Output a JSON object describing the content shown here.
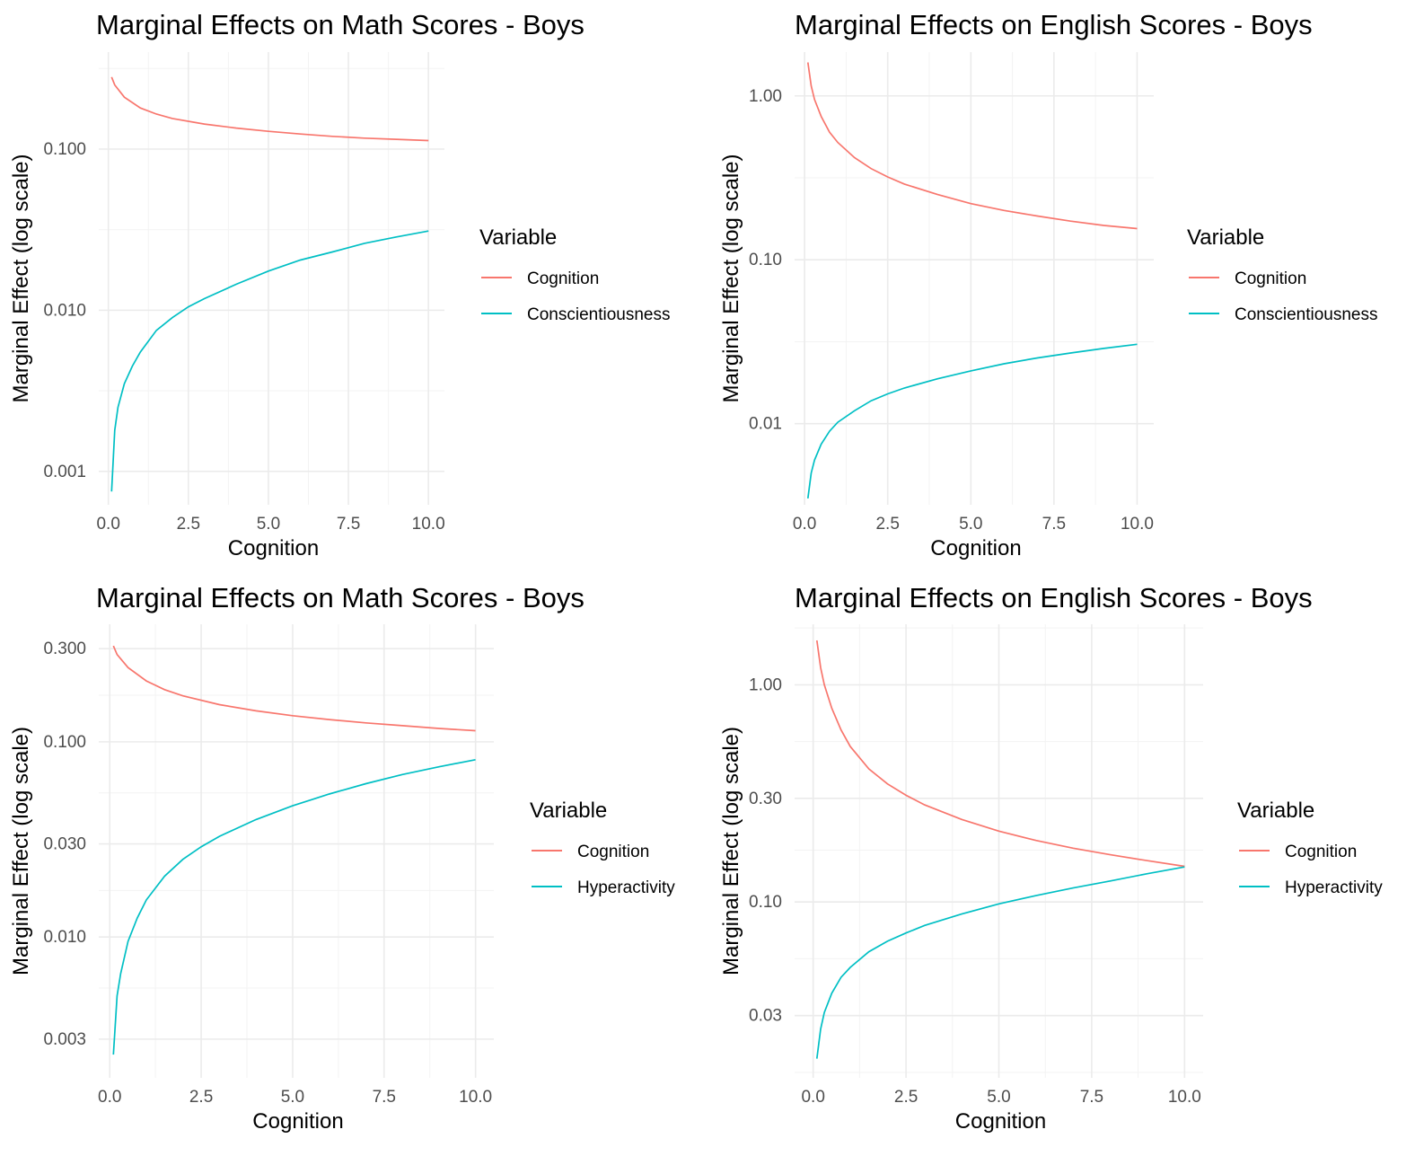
{
  "colors": {
    "cognition": "#F8766D",
    "other": "#00BFC4"
  },
  "chart_data": [
    {
      "type": "line",
      "title": "Marginal Effects on Math Scores - Boys",
      "xlabel": "Cognition",
      "ylabel": "Marginal Effect (log scale)",
      "yscale": "log",
      "xlim": [
        -0.3,
        10.5
      ],
      "ylim": [
        0.00062,
        0.4
      ],
      "x_ticks": [
        0,
        2.5,
        5,
        7.5,
        10
      ],
      "x_tick_labels": [
        "0.0",
        "2.5",
        "5.0",
        "7.5",
        "10.0"
      ],
      "y_ticks": [
        0.001,
        0.01,
        0.1
      ],
      "y_tick_labels": [
        "0.001",
        "0.010",
        "0.100"
      ],
      "grid": true,
      "legend": {
        "title": "Variable",
        "position": "right",
        "entries": [
          "Cognition",
          "Conscientiousness"
        ]
      },
      "series": [
        {
          "name": "Cognition",
          "x": [
            0.1,
            0.2,
            0.5,
            1,
            1.5,
            2,
            3,
            4,
            5,
            6,
            7,
            8,
            9,
            10
          ],
          "values": [
            0.28,
            0.25,
            0.21,
            0.18,
            0.165,
            0.155,
            0.143,
            0.135,
            0.129,
            0.124,
            0.12,
            0.117,
            0.115,
            0.113
          ]
        },
        {
          "name": "Conscientiousness",
          "x": [
            0.1,
            0.2,
            0.3,
            0.5,
            0.75,
            1,
            1.5,
            2,
            2.5,
            3,
            4,
            5,
            6,
            7,
            8,
            9,
            10
          ],
          "values": [
            0.00075,
            0.0018,
            0.0025,
            0.0035,
            0.0045,
            0.0055,
            0.0075,
            0.009,
            0.0105,
            0.0118,
            0.0145,
            0.0175,
            0.0205,
            0.023,
            0.026,
            0.0285,
            0.031
          ]
        }
      ]
    },
    {
      "type": "line",
      "title": "Marginal Effects on English Scores - Boys",
      "xlabel": "Cognition",
      "ylabel": "Marginal Effect (log scale)",
      "yscale": "log",
      "xlim": [
        -0.3,
        10.5
      ],
      "ylim": [
        0.0032,
        1.85
      ],
      "x_ticks": [
        0,
        2.5,
        5,
        7.5,
        10
      ],
      "x_tick_labels": [
        "0.0",
        "2.5",
        "5.0",
        "7.5",
        "10.0"
      ],
      "y_ticks": [
        0.01,
        0.1,
        1
      ],
      "y_tick_labels": [
        "0.01",
        "0.10",
        "1.00"
      ],
      "grid": true,
      "legend": {
        "title": "Variable",
        "position": "right",
        "entries": [
          "Cognition",
          "Conscientiousness"
        ]
      },
      "series": [
        {
          "name": "Cognition",
          "x": [
            0.1,
            0.2,
            0.3,
            0.5,
            0.75,
            1,
            1.5,
            2,
            2.5,
            3,
            4,
            5,
            6,
            7,
            8,
            9,
            10
          ],
          "values": [
            1.6,
            1.15,
            0.95,
            0.75,
            0.6,
            0.52,
            0.42,
            0.36,
            0.32,
            0.29,
            0.25,
            0.22,
            0.2,
            0.185,
            0.172,
            0.162,
            0.155
          ]
        },
        {
          "name": "Conscientiousness",
          "x": [
            0.1,
            0.2,
            0.3,
            0.5,
            0.75,
            1,
            1.5,
            2,
            2.5,
            3,
            4,
            5,
            6,
            7,
            8,
            9,
            10
          ],
          "values": [
            0.0035,
            0.005,
            0.006,
            0.0075,
            0.009,
            0.0102,
            0.012,
            0.0138,
            0.0152,
            0.0165,
            0.0188,
            0.021,
            0.0232,
            0.0252,
            0.027,
            0.0288,
            0.0305
          ]
        }
      ]
    },
    {
      "type": "line",
      "title": "Marginal Effects on Math Scores - Boys",
      "xlabel": "Cognition",
      "ylabel": "Marginal Effect (log scale)",
      "yscale": "log",
      "xlim": [
        -0.3,
        10.5
      ],
      "ylim": [
        0.0019,
        0.4
      ],
      "x_ticks": [
        0,
        2.5,
        5,
        7.5,
        10
      ],
      "x_tick_labels": [
        "0.0",
        "2.5",
        "5.0",
        "7.5",
        "10.0"
      ],
      "y_ticks": [
        0.003,
        0.01,
        0.03,
        0.1,
        0.3
      ],
      "y_tick_labels": [
        "0.003",
        "0.010",
        "0.030",
        "0.100",
        "0.300"
      ],
      "grid": true,
      "legend": {
        "title": "Variable",
        "position": "right",
        "entries": [
          "Cognition",
          "Hyperactivity"
        ]
      },
      "series": [
        {
          "name": "Cognition",
          "x": [
            0.1,
            0.2,
            0.5,
            1,
            1.5,
            2,
            3,
            4,
            5,
            6,
            7,
            8,
            9,
            10
          ],
          "values": [
            0.31,
            0.28,
            0.24,
            0.205,
            0.185,
            0.172,
            0.155,
            0.144,
            0.136,
            0.13,
            0.125,
            0.121,
            0.117,
            0.114
          ]
        },
        {
          "name": "Hyperactivity",
          "x": [
            0.1,
            0.2,
            0.3,
            0.5,
            0.75,
            1,
            1.5,
            2,
            2.5,
            3,
            4,
            5,
            6,
            7,
            8,
            9,
            10
          ],
          "values": [
            0.0025,
            0.005,
            0.0065,
            0.0095,
            0.0125,
            0.0155,
            0.0205,
            0.025,
            0.029,
            0.0328,
            0.04,
            0.047,
            0.054,
            0.061,
            0.068,
            0.0745,
            0.081
          ]
        }
      ]
    },
    {
      "type": "line",
      "title": "Marginal Effects on English Scores - Boys",
      "xlabel": "Cognition",
      "ylabel": "Marginal Effect (log scale)",
      "yscale": "log",
      "xlim": [
        -0.5,
        10.5
      ],
      "ylim": [
        0.0155,
        1.9
      ],
      "x_ticks": [
        0,
        2.5,
        5,
        7.5,
        10
      ],
      "x_tick_labels": [
        "0.0",
        "2.5",
        "5.0",
        "7.5",
        "10.0"
      ],
      "y_ticks": [
        0.03,
        0.1,
        0.3,
        1
      ],
      "y_tick_labels": [
        "0.03",
        "0.10",
        "0.30",
        "1.00"
      ],
      "grid": true,
      "legend": {
        "title": "Variable",
        "position": "right",
        "entries": [
          "Cognition",
          "Hyperactivity"
        ]
      },
      "series": [
        {
          "name": "Cognition",
          "x": [
            0.1,
            0.2,
            0.3,
            0.5,
            0.75,
            1,
            1.5,
            2,
            2.5,
            3,
            4,
            5,
            6,
            7,
            8,
            9,
            10
          ],
          "values": [
            1.6,
            1.2,
            1.0,
            0.78,
            0.62,
            0.52,
            0.41,
            0.35,
            0.31,
            0.28,
            0.24,
            0.212,
            0.192,
            0.177,
            0.165,
            0.155,
            0.146
          ]
        },
        {
          "name": "Hyperactivity",
          "x": [
            0.1,
            0.2,
            0.3,
            0.5,
            0.75,
            1,
            1.5,
            2,
            2.5,
            3,
            4,
            5,
            6,
            7,
            8,
            9,
            10
          ],
          "values": [
            0.019,
            0.026,
            0.031,
            0.038,
            0.045,
            0.05,
            0.059,
            0.066,
            0.072,
            0.078,
            0.088,
            0.098,
            0.107,
            0.116,
            0.125,
            0.135,
            0.145
          ]
        }
      ]
    }
  ]
}
